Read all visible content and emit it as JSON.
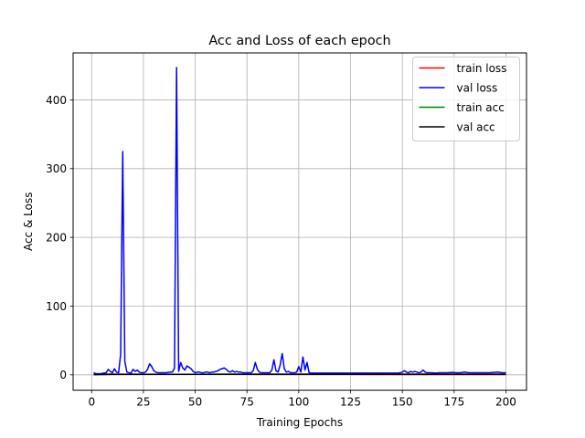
{
  "chart_data": {
    "type": "line",
    "title": "Acc and Loss of each epoch",
    "xlabel": "Training Epochs",
    "ylabel": "Acc & Loss",
    "xlim": [
      -8.95,
      209.95
    ],
    "ylim": [
      -22.3,
      468.3
    ],
    "x_ticks": [
      0,
      25,
      50,
      75,
      100,
      125,
      150,
      175,
      200
    ],
    "y_ticks": [
      0,
      100,
      200,
      300,
      400
    ],
    "grid": true,
    "legend_position": "top-right",
    "series": [
      {
        "name": "train loss",
        "color": "#ff0000",
        "points": [
          [
            1,
            3.5
          ],
          [
            2,
            1.6
          ],
          [
            3,
            1.3
          ],
          [
            5,
            1.1
          ],
          [
            10,
            1.0
          ],
          [
            20,
            0.9
          ],
          [
            40,
            0.8
          ],
          [
            60,
            0.7
          ],
          [
            80,
            0.6
          ],
          [
            100,
            0.5
          ],
          [
            120,
            0.5
          ],
          [
            140,
            0.4
          ],
          [
            160,
            0.4
          ],
          [
            180,
            0.4
          ],
          [
            200,
            0.4
          ]
        ]
      },
      {
        "name": "val loss",
        "color": "#0000ff",
        "points": [
          [
            1,
            2.5
          ],
          [
            2,
            1.5
          ],
          [
            3,
            1.8
          ],
          [
            4,
            1.5
          ],
          [
            5,
            2
          ],
          [
            6,
            2.5
          ],
          [
            7,
            3
          ],
          [
            8,
            8
          ],
          [
            9,
            5
          ],
          [
            10,
            3
          ],
          [
            11,
            9
          ],
          [
            12,
            4
          ],
          [
            13,
            3
          ],
          [
            14,
            30
          ],
          [
            15,
            325
          ],
          [
            16,
            20
          ],
          [
            17,
            4
          ],
          [
            18,
            3
          ],
          [
            19,
            2.5
          ],
          [
            20,
            8
          ],
          [
            21,
            5
          ],
          [
            22,
            7
          ],
          [
            23,
            4
          ],
          [
            24,
            3
          ],
          [
            25,
            3
          ],
          [
            26,
            4
          ],
          [
            27,
            8
          ],
          [
            28,
            16
          ],
          [
            29,
            12
          ],
          [
            30,
            6
          ],
          [
            31,
            4
          ],
          [
            32,
            3
          ],
          [
            33,
            3
          ],
          [
            34,
            3
          ],
          [
            35,
            3
          ],
          [
            36,
            3
          ],
          [
            37,
            3.5
          ],
          [
            38,
            4
          ],
          [
            39,
            4
          ],
          [
            40,
            10
          ],
          [
            41,
            447
          ],
          [
            42,
            5
          ],
          [
            43,
            18
          ],
          [
            44,
            10
          ],
          [
            45,
            7
          ],
          [
            46,
            13
          ],
          [
            47,
            11
          ],
          [
            48,
            9
          ],
          [
            49,
            5
          ],
          [
            50,
            3
          ],
          [
            51,
            4
          ],
          [
            52,
            4
          ],
          [
            53,
            3
          ],
          [
            54,
            3
          ],
          [
            55,
            4
          ],
          [
            56,
            4
          ],
          [
            57,
            3
          ],
          [
            58,
            4
          ],
          [
            59,
            4
          ],
          [
            60,
            5
          ],
          [
            61,
            6
          ],
          [
            62,
            8
          ],
          [
            63,
            9
          ],
          [
            64,
            10
          ],
          [
            65,
            8
          ],
          [
            66,
            5
          ],
          [
            67,
            4
          ],
          [
            68,
            6
          ],
          [
            69,
            4
          ],
          [
            70,
            5
          ],
          [
            71,
            4
          ],
          [
            72,
            4
          ],
          [
            73,
            3
          ],
          [
            74,
            3
          ],
          [
            75,
            3
          ],
          [
            76,
            3
          ],
          [
            77,
            3
          ],
          [
            78,
            6
          ],
          [
            79,
            18
          ],
          [
            80,
            8
          ],
          [
            81,
            4
          ],
          [
            82,
            3
          ],
          [
            83,
            3
          ],
          [
            84,
            3
          ],
          [
            85,
            3
          ],
          [
            86,
            3
          ],
          [
            87,
            7
          ],
          [
            88,
            22
          ],
          [
            89,
            6
          ],
          [
            90,
            4
          ],
          [
            91,
            14
          ],
          [
            92,
            31
          ],
          [
            93,
            9
          ],
          [
            94,
            4
          ],
          [
            95,
            5
          ],
          [
            96,
            3
          ],
          [
            97,
            3
          ],
          [
            98,
            3
          ],
          [
            99,
            4
          ],
          [
            100,
            12
          ],
          [
            101,
            4
          ],
          [
            102,
            26
          ],
          [
            103,
            7
          ],
          [
            104,
            18
          ],
          [
            105,
            3
          ],
          [
            106,
            2.5
          ],
          [
            108,
            2.5
          ],
          [
            110,
            2.5
          ],
          [
            115,
            2.5
          ],
          [
            120,
            2.5
          ],
          [
            125,
            2.5
          ],
          [
            130,
            2.5
          ],
          [
            135,
            2.5
          ],
          [
            140,
            2.5
          ],
          [
            145,
            2.5
          ],
          [
            148,
            2.5
          ],
          [
            149,
            3
          ],
          [
            150,
            4
          ],
          [
            151,
            6
          ],
          [
            152,
            4
          ],
          [
            153,
            3
          ],
          [
            154,
            5
          ],
          [
            155,
            4
          ],
          [
            156,
            5
          ],
          [
            157,
            4
          ],
          [
            158,
            3
          ],
          [
            159,
            4
          ],
          [
            160,
            7
          ],
          [
            161,
            4
          ],
          [
            162,
            3
          ],
          [
            164,
            3
          ],
          [
            166,
            2.5
          ],
          [
            168,
            3
          ],
          [
            170,
            3
          ],
          [
            172,
            3
          ],
          [
            174,
            3.5
          ],
          [
            176,
            3
          ],
          [
            178,
            3
          ],
          [
            180,
            4
          ],
          [
            182,
            3
          ],
          [
            184,
            3
          ],
          [
            186,
            3
          ],
          [
            188,
            3
          ],
          [
            190,
            3
          ],
          [
            192,
            3
          ],
          [
            194,
            3.5
          ],
          [
            196,
            4
          ],
          [
            198,
            3
          ],
          [
            200,
            3
          ]
        ]
      },
      {
        "name": "train acc",
        "color": "#008000",
        "points": [
          [
            1,
            0.3
          ],
          [
            10,
            0.6
          ],
          [
            50,
            0.8
          ],
          [
            100,
            0.88
          ],
          [
            150,
            0.9
          ],
          [
            200,
            0.92
          ]
        ]
      },
      {
        "name": "val acc",
        "color": "#000000",
        "points": [
          [
            1,
            0.4
          ],
          [
            10,
            0.65
          ],
          [
            50,
            0.8
          ],
          [
            100,
            0.85
          ],
          [
            150,
            0.87
          ],
          [
            200,
            0.88
          ]
        ]
      }
    ]
  }
}
